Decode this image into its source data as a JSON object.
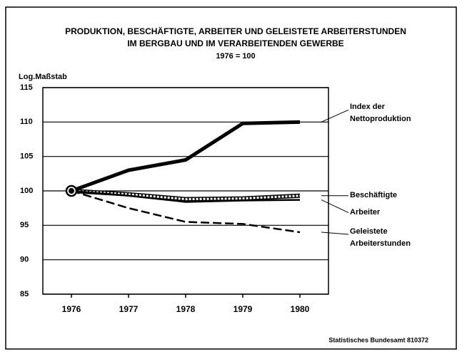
{
  "chart_data": {
    "type": "line",
    "title": [
      "PRODUKTION, BESCHÄFTIGTE, ARBEITER UND GELEISTETE ARBEITERSTUNDEN",
      "IM BERGBAU UND IM VERARBEITENDEN GEWERBE"
    ],
    "subtitle": "1976 = 100",
    "y_label": "Log.Maßstab",
    "x": [
      1976,
      1977,
      1978,
      1979,
      1980
    ],
    "xlim": [
      1975.5,
      1980.5
    ],
    "xticks": [
      1976,
      1977,
      1978,
      1979,
      1980
    ],
    "ylim": [
      85,
      115
    ],
    "yticks": [
      85,
      90,
      95,
      100,
      105,
      110,
      115
    ],
    "grid": true,
    "series": [
      {
        "name": "Index der Nettoproduktion",
        "color": "#000000",
        "style": "solid",
        "width": 5,
        "values": [
          100,
          103,
          104.5,
          109.8,
          110
        ]
      },
      {
        "name": "Beschäftigte",
        "color": "#000000",
        "style": "hollow",
        "width": 6,
        "values": [
          100,
          99.5,
          98.8,
          98.9,
          99.3
        ]
      },
      {
        "name": "Arbeiter",
        "color": "#000000",
        "style": "solid",
        "width": 2.5,
        "values": [
          100,
          99.3,
          98.4,
          98.6,
          98.7
        ]
      },
      {
        "name": "Geleistete Arbeiterstunden",
        "color": "#000000",
        "style": "dashed",
        "width": 2.5,
        "values": [
          100,
          97.5,
          95.5,
          95.2,
          94.0
        ]
      }
    ],
    "source": "Statistisches Bundesamt 810372"
  }
}
